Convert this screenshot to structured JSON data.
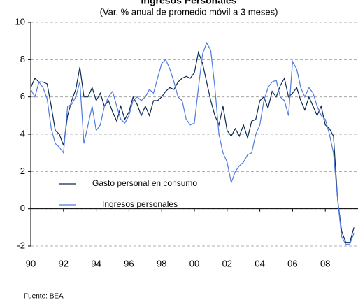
{
  "chart_data": {
    "type": "line",
    "title": "Ingresos Personales",
    "subtitle": "(Var. % anual de promedio móvil a 3 meses)",
    "source": "Fuente: BEA",
    "x": [
      1990,
      1990.25,
      1990.5,
      1990.75,
      1991,
      1991.25,
      1991.5,
      1991.75,
      1992,
      1992.25,
      1992.5,
      1992.75,
      1993,
      1993.25,
      1993.5,
      1993.75,
      1994,
      1994.25,
      1994.5,
      1994.75,
      1995,
      1995.25,
      1995.5,
      1995.75,
      1996,
      1996.25,
      1996.5,
      1996.75,
      1997,
      1997.25,
      1997.5,
      1997.75,
      1998,
      1998.25,
      1998.5,
      1998.75,
      1999,
      1999.25,
      1999.5,
      1999.75,
      2000,
      2000.25,
      2000.5,
      2000.75,
      2001,
      2001.25,
      2001.5,
      2001.75,
      2002,
      2002.25,
      2002.5,
      2002.75,
      2003,
      2003.25,
      2003.5,
      2003.75,
      2004,
      2004.25,
      2004.5,
      2004.75,
      2005,
      2005.25,
      2005.5,
      2005.75,
      2006,
      2006.25,
      2006.5,
      2006.75,
      2007,
      2007.25,
      2007.5,
      2007.75,
      2008,
      2008.25,
      2008.5,
      2008.75,
      2009,
      2009.25,
      2009.5,
      2009.75
    ],
    "series": [
      {
        "name": "Gasto personal en consumo",
        "color": "#0b2a52",
        "values": [
          6.5,
          7.0,
          6.8,
          6.8,
          6.7,
          5.5,
          4.2,
          4.0,
          3.4,
          5.0,
          5.8,
          6.4,
          7.6,
          6.0,
          6.0,
          6.5,
          5.8,
          6.2,
          5.5,
          5.8,
          5.2,
          4.7,
          5.5,
          4.8,
          5.2,
          6.0,
          5.6,
          5.0,
          5.5,
          5.0,
          5.8,
          5.8,
          6.0,
          6.3,
          6.5,
          6.4,
          6.8,
          7.0,
          7.1,
          7.0,
          7.3,
          8.4,
          7.8,
          6.8,
          5.8,
          5.0,
          4.5,
          5.5,
          4.2,
          3.9,
          4.3,
          3.9,
          4.5,
          3.8,
          4.7,
          4.8,
          5.8,
          6.0,
          5.4,
          6.3,
          6.0,
          6.6,
          7.0,
          6.0,
          6.2,
          6.5,
          5.8,
          5.3,
          6.0,
          5.5,
          5.0,
          5.5,
          4.5,
          4.3,
          3.9,
          0.5,
          -1.2,
          -1.8,
          -1.8,
          -1.0
        ]
      },
      {
        "name": "Ingresos personales",
        "color": "#4f7be0",
        "values": [
          6.4,
          6.0,
          6.8,
          6.5,
          5.9,
          4.3,
          3.5,
          3.3,
          3.0,
          5.5,
          5.6,
          6.0,
          6.8,
          3.5,
          4.5,
          5.5,
          4.2,
          4.5,
          5.5,
          6.0,
          6.3,
          5.5,
          4.8,
          4.6,
          5.0,
          5.8,
          6.0,
          5.8,
          6.0,
          6.4,
          6.2,
          7.0,
          7.8,
          8.0,
          7.5,
          6.8,
          6.0,
          5.8,
          4.8,
          4.5,
          4.6,
          6.5,
          8.3,
          8.9,
          8.5,
          6.5,
          4.0,
          3.0,
          2.5,
          1.4,
          2.0,
          2.3,
          2.5,
          2.9,
          3.0,
          4.0,
          4.5,
          5.8,
          6.5,
          6.8,
          6.9,
          6.0,
          5.8,
          5.0,
          7.9,
          7.5,
          6.5,
          6.0,
          6.5,
          6.2,
          5.5,
          5.0,
          4.8,
          4.0,
          3.0,
          0.5,
          -1.5,
          -1.9,
          -1.9,
          -1.3
        ]
      }
    ],
    "xlim": [
      1990,
      2010
    ],
    "xticks": [
      {
        "value": 1990,
        "label": "90"
      },
      {
        "value": 1992,
        "label": "92"
      },
      {
        "value": 1994,
        "label": "94"
      },
      {
        "value": 1996,
        "label": "96"
      },
      {
        "value": 1998,
        "label": "98"
      },
      {
        "value": 2000,
        "label": "00"
      },
      {
        "value": 2002,
        "label": "02"
      },
      {
        "value": 2004,
        "label": "04"
      },
      {
        "value": 2006,
        "label": "06"
      },
      {
        "value": 2008,
        "label": "08"
      }
    ],
    "ylim": [
      -2,
      10
    ],
    "yticks": [
      -2,
      0,
      2,
      4,
      6,
      8,
      10
    ],
    "grid": true
  }
}
